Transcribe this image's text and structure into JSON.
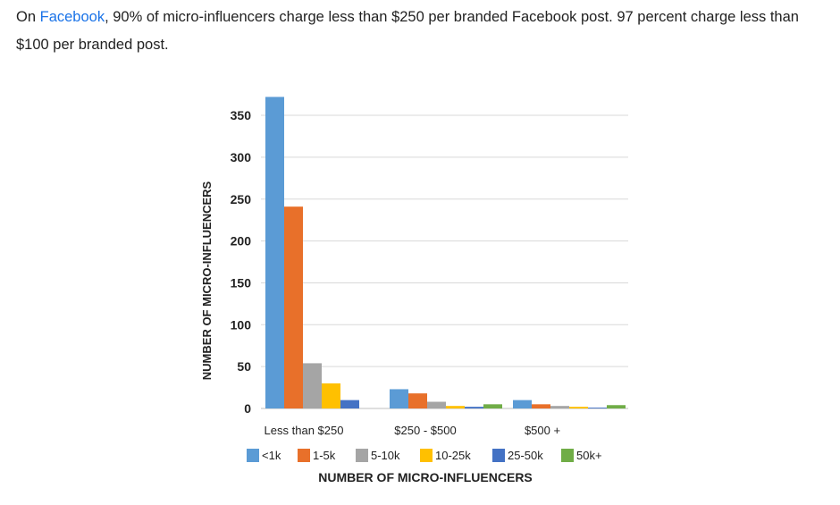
{
  "intro": {
    "prefix": "On ",
    "link_text": "Facebook",
    "rest": ", 90% of micro-influencers charge less than $250 per branded Facebook post. 97 percent charge less than $100 per branded post."
  },
  "chart_data": {
    "type": "bar",
    "title": "",
    "xlabel": "NUMBER OF MICRO-INFLUENCERS",
    "ylabel": "NUMBER OF MICRO-INFLUENCERS",
    "ylim": [
      0,
      370
    ],
    "yticks": [
      0,
      50,
      100,
      150,
      200,
      250,
      300,
      350
    ],
    "grid": true,
    "legend_position": "bottom",
    "categories": [
      "Less than $250",
      "$250 - $500",
      "$500 +"
    ],
    "series": [
      {
        "name": "<1k",
        "color": "#5b9bd5",
        "values": [
          372,
          23,
          10
        ]
      },
      {
        "name": "1-5k",
        "color": "#e8702a",
        "values": [
          241,
          18,
          5
        ]
      },
      {
        "name": "5-10k",
        "color": "#a5a5a5",
        "values": [
          54,
          8,
          3
        ]
      },
      {
        "name": "10-25k",
        "color": "#ffc000",
        "values": [
          30,
          3,
          2
        ]
      },
      {
        "name": "25-50k",
        "color": "#4472c4",
        "values": [
          10,
          2,
          1
        ]
      },
      {
        "name": "50k+",
        "color": "#70ad47",
        "values": [
          0,
          5,
          4
        ]
      }
    ]
  }
}
